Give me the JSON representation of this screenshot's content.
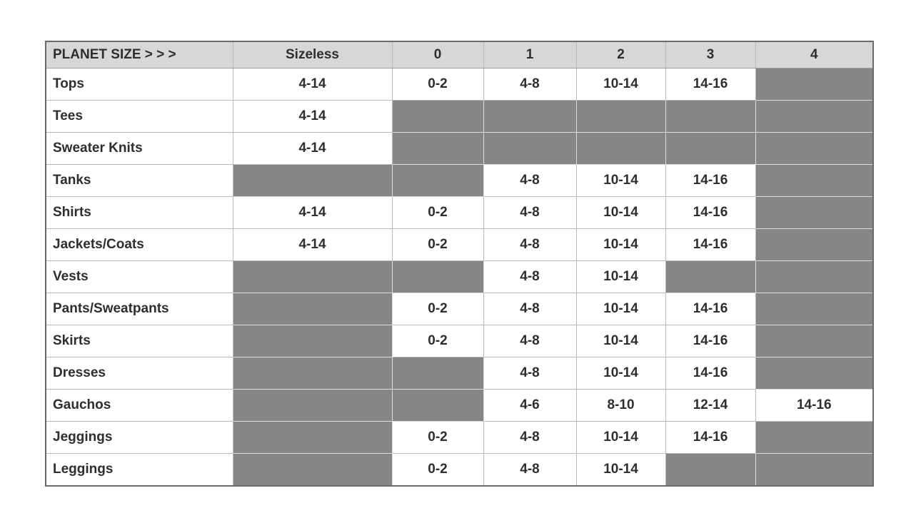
{
  "colors": {
    "filled_cell": "#868686",
    "header_bg": "#d7d7d7",
    "text": "#2e2e2e",
    "grid_line": "#b9b9b9",
    "outer_border": "#6b6b6b",
    "page_bg": "#ffffff"
  },
  "chart_data": {
    "type": "table",
    "title": "PLANET SIZE > > >",
    "columns": [
      "PLANET SIZE > > >",
      "Sizeless",
      "0",
      "1",
      "2",
      "3",
      "4"
    ],
    "rows": [
      {
        "label": "Tops",
        "cells": [
          "4-14",
          "0-2",
          "4-8",
          "10-14",
          "14-16",
          ""
        ]
      },
      {
        "label": "Tees",
        "cells": [
          "4-14",
          "",
          "",
          "",
          "",
          ""
        ]
      },
      {
        "label": "Sweater Knits",
        "cells": [
          "4-14",
          "",
          "",
          "",
          "",
          ""
        ]
      },
      {
        "label": "Tanks",
        "cells": [
          "",
          "",
          "4-8",
          "10-14",
          "14-16",
          ""
        ]
      },
      {
        "label": "Shirts",
        "cells": [
          "4-14",
          "0-2",
          "4-8",
          "10-14",
          "14-16",
          ""
        ]
      },
      {
        "label": "Jackets/Coats",
        "cells": [
          "4-14",
          "0-2",
          "4-8",
          "10-14",
          "14-16",
          ""
        ]
      },
      {
        "label": "Vests",
        "cells": [
          "",
          "",
          "4-8",
          "10-14",
          "",
          ""
        ]
      },
      {
        "label": "Pants/Sweatpants",
        "cells": [
          "",
          "0-2",
          "4-8",
          "10-14",
          "14-16",
          ""
        ]
      },
      {
        "label": "Skirts",
        "cells": [
          "",
          "0-2",
          "4-8",
          "10-14",
          "14-16",
          ""
        ]
      },
      {
        "label": "Dresses",
        "cells": [
          "",
          "",
          "4-8",
          "10-14",
          "14-16",
          ""
        ]
      },
      {
        "label": "Gauchos",
        "cells": [
          "",
          "",
          "4-6",
          "8-10",
          "12-14",
          "14-16"
        ]
      },
      {
        "label": "Jeggings",
        "cells": [
          "",
          "0-2",
          "4-8",
          "10-14",
          "14-16",
          ""
        ]
      },
      {
        "label": "Leggings",
        "cells": [
          "",
          "0-2",
          "4-8",
          "10-14",
          "",
          ""
        ]
      }
    ]
  }
}
